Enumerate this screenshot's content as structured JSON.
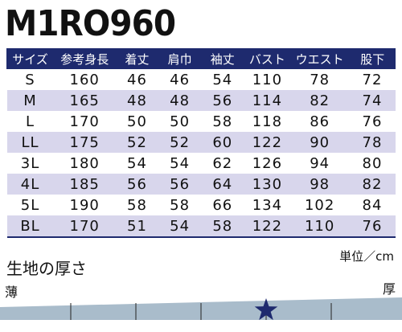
{
  "product_code": "M1RO960",
  "table": {
    "headers": [
      "サイズ",
      "参考身長",
      "着丈",
      "肩巾",
      "袖丈",
      "バスト",
      "ウエスト",
      "股下"
    ],
    "rows": [
      [
        "S",
        "160",
        "46",
        "46",
        "54",
        "110",
        "78",
        "72"
      ],
      [
        "M",
        "165",
        "48",
        "48",
        "56",
        "114",
        "82",
        "74"
      ],
      [
        "L",
        "170",
        "50",
        "50",
        "58",
        "118",
        "86",
        "76"
      ],
      [
        "LL",
        "175",
        "52",
        "52",
        "60",
        "122",
        "90",
        "78"
      ],
      [
        "3L",
        "180",
        "54",
        "54",
        "62",
        "126",
        "94",
        "80"
      ],
      [
        "4L",
        "185",
        "56",
        "56",
        "64",
        "130",
        "98",
        "82"
      ],
      [
        "5L",
        "190",
        "58",
        "58",
        "66",
        "134",
        "102",
        "84"
      ],
      [
        "BL",
        "170",
        "51",
        "54",
        "58",
        "122",
        "110",
        "76"
      ]
    ],
    "unit": "単位／cm"
  },
  "thickness": {
    "title": "生地の厚さ",
    "thin_label": "薄",
    "thick_label": "厚",
    "marker_icon": "star-icon",
    "level": 4,
    "steps": 5,
    "colors": {
      "bar": "#a9bccb",
      "marker": "#1e2a6e",
      "header": "#1e2a6e",
      "alt_row": "#d8d6ec"
    }
  }
}
